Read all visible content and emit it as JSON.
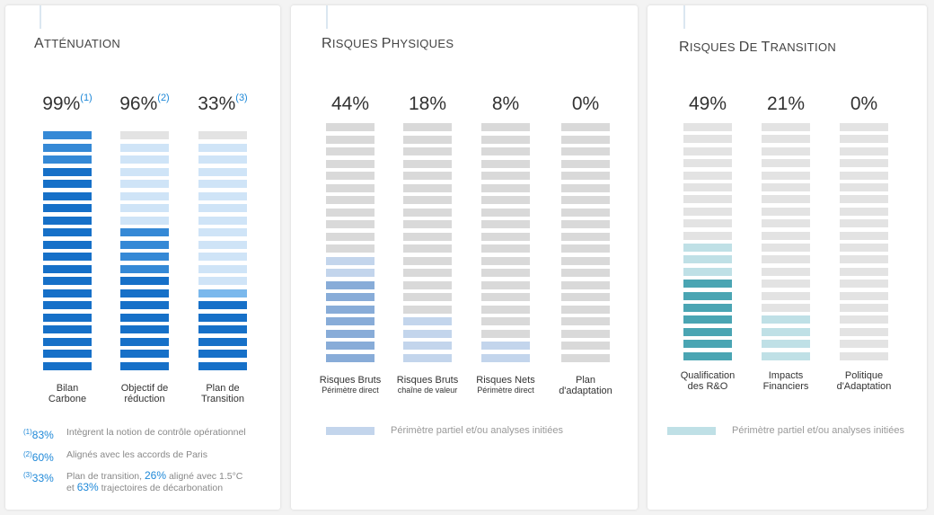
{
  "panels": [
    {
      "title": "Atténuation",
      "columns": [
        {
          "value": "99%",
          "note": "(1)",
          "label_lines": [
            "Bilan",
            "Carbone"
          ],
          "filled_segments": 20,
          "tint_segments": 0
        },
        {
          "value": "96%",
          "note": "(2)",
          "label_lines": [
            "Objectif de",
            "réduction"
          ],
          "filled_segments": 12,
          "tint_segments": 0
        },
        {
          "value": "33%",
          "note": "(3)",
          "label_lines": [
            "Plan de",
            "Transition"
          ],
          "filled_segments": 6,
          "tint_segments": 1
        }
      ],
      "footnotes": [
        {
          "num": "(1)",
          "value": "83%",
          "text": "Intègrent la notion de contrôle opérationnel"
        },
        {
          "num": "(2)",
          "value": "60%",
          "text": "Alignés avec les accords de Paris"
        },
        {
          "num": "(3)",
          "value": "33%",
          "text_a": "Plan de transition,",
          "value_b": "26%",
          "text_b": "aligné avec 1.5°C",
          "text_c": "et",
          "value_c": "63%",
          "text_d": "trajectoires de décarbonation"
        }
      ]
    },
    {
      "title": "Risques physiques",
      "columns": [
        {
          "value": "44%",
          "label": "Risques Bruts",
          "sub": "Périmètre direct",
          "filled_segments": 7,
          "tint_segments": 2
        },
        {
          "value": "18%",
          "label": "Risques Bruts",
          "sub": "chaîne de valeur",
          "filled_segments": 0,
          "tint_segments": 4
        },
        {
          "value": "8%",
          "label": "Risques Nets",
          "sub": "Périmètre direct",
          "filled_segments": 0,
          "tint_segments": 2
        },
        {
          "value": "0%",
          "label_lines": [
            "Plan",
            "d'adaptation"
          ],
          "filled_segments": 0,
          "tint_segments": 0
        }
      ],
      "legend": "Périmètre partiel et/ou analyses initiées"
    },
    {
      "title": "Risques de transition",
      "columns": [
        {
          "value": "49%",
          "label_lines": [
            "Qualification",
            "des R&O"
          ],
          "filled_segments": 7,
          "tint_segments": 3
        },
        {
          "value": "21%",
          "label_lines": [
            "Impacts",
            "Financiers"
          ],
          "filled_segments": 0,
          "tint_segments": 4
        },
        {
          "value": "0%",
          "label_lines": [
            "Politique",
            "d'Adaptation"
          ],
          "filled_segments": 0,
          "tint_segments": 0
        }
      ],
      "legend": "Périmètre partiel et/ou analyses initiées"
    }
  ],
  "colors": {
    "p1_bg": "#cfe4f7",
    "p1_fill": "#3589d6",
    "p1_fill_dark": "#1670c8",
    "p1_gray": "#e3e3e3",
    "p1_mid": "#7ab8ec",
    "p2_bg": "#d9d9d9",
    "p2_fill": "#88acd8",
    "p2_tint": "#c3d5ec",
    "p3_bg": "#e3e3e3",
    "p3_fill": "#4aa5b3",
    "p3_tint": "#bfe0e6"
  },
  "chart_data": {
    "type": "bar",
    "segments_per_bar": 20,
    "groups": [
      {
        "title": "Atténuation",
        "categories": [
          "Bilan Carbone",
          "Objectif de réduction",
          "Plan de Transition"
        ],
        "values": [
          99,
          96,
          33
        ]
      },
      {
        "title": "Risques physiques",
        "categories": [
          "Risques Bruts Périmètre direct",
          "Risques Bruts chaîne de valeur",
          "Risques Nets Périmètre direct",
          "Plan d'adaptation"
        ],
        "values": [
          44,
          18,
          8,
          0
        ]
      },
      {
        "title": "Risques de transition",
        "categories": [
          "Qualification des R&O",
          "Impacts Financiers",
          "Politique d'Adaptation"
        ],
        "values": [
          49,
          21,
          0
        ]
      }
    ]
  }
}
